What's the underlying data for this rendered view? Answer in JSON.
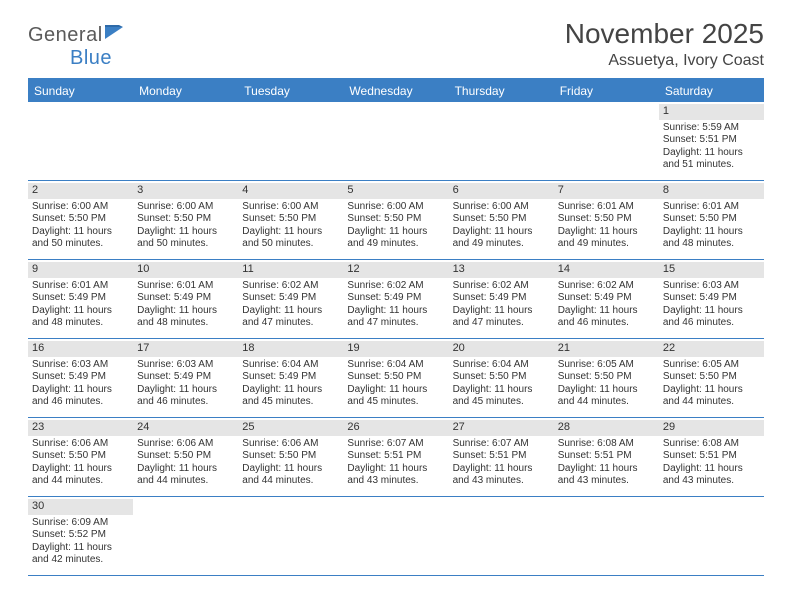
{
  "logo": {
    "text_gen": "General",
    "text_blue": "Blue"
  },
  "header": {
    "month_title": "November 2025",
    "location": "Assuetya, Ivory Coast"
  },
  "colors": {
    "accent": "#3b7fc4",
    "daynum_bg": "#e5e5e5",
    "text": "#333333",
    "bg": "#ffffff"
  },
  "day_headers": [
    "Sunday",
    "Monday",
    "Tuesday",
    "Wednesday",
    "Thursday",
    "Friday",
    "Saturday"
  ],
  "weeks": [
    [
      {
        "empty": true
      },
      {
        "empty": true
      },
      {
        "empty": true
      },
      {
        "empty": true
      },
      {
        "empty": true
      },
      {
        "empty": true
      },
      {
        "day": "1",
        "sunrise": "Sunrise: 5:59 AM",
        "sunset": "Sunset: 5:51 PM",
        "daylight1": "Daylight: 11 hours",
        "daylight2": "and 51 minutes."
      }
    ],
    [
      {
        "day": "2",
        "sunrise": "Sunrise: 6:00 AM",
        "sunset": "Sunset: 5:50 PM",
        "daylight1": "Daylight: 11 hours",
        "daylight2": "and 50 minutes."
      },
      {
        "day": "3",
        "sunrise": "Sunrise: 6:00 AM",
        "sunset": "Sunset: 5:50 PM",
        "daylight1": "Daylight: 11 hours",
        "daylight2": "and 50 minutes."
      },
      {
        "day": "4",
        "sunrise": "Sunrise: 6:00 AM",
        "sunset": "Sunset: 5:50 PM",
        "daylight1": "Daylight: 11 hours",
        "daylight2": "and 50 minutes."
      },
      {
        "day": "5",
        "sunrise": "Sunrise: 6:00 AM",
        "sunset": "Sunset: 5:50 PM",
        "daylight1": "Daylight: 11 hours",
        "daylight2": "and 49 minutes."
      },
      {
        "day": "6",
        "sunrise": "Sunrise: 6:00 AM",
        "sunset": "Sunset: 5:50 PM",
        "daylight1": "Daylight: 11 hours",
        "daylight2": "and 49 minutes."
      },
      {
        "day": "7",
        "sunrise": "Sunrise: 6:01 AM",
        "sunset": "Sunset: 5:50 PM",
        "daylight1": "Daylight: 11 hours",
        "daylight2": "and 49 minutes."
      },
      {
        "day": "8",
        "sunrise": "Sunrise: 6:01 AM",
        "sunset": "Sunset: 5:50 PM",
        "daylight1": "Daylight: 11 hours",
        "daylight2": "and 48 minutes."
      }
    ],
    [
      {
        "day": "9",
        "sunrise": "Sunrise: 6:01 AM",
        "sunset": "Sunset: 5:49 PM",
        "daylight1": "Daylight: 11 hours",
        "daylight2": "and 48 minutes."
      },
      {
        "day": "10",
        "sunrise": "Sunrise: 6:01 AM",
        "sunset": "Sunset: 5:49 PM",
        "daylight1": "Daylight: 11 hours",
        "daylight2": "and 48 minutes."
      },
      {
        "day": "11",
        "sunrise": "Sunrise: 6:02 AM",
        "sunset": "Sunset: 5:49 PM",
        "daylight1": "Daylight: 11 hours",
        "daylight2": "and 47 minutes."
      },
      {
        "day": "12",
        "sunrise": "Sunrise: 6:02 AM",
        "sunset": "Sunset: 5:49 PM",
        "daylight1": "Daylight: 11 hours",
        "daylight2": "and 47 minutes."
      },
      {
        "day": "13",
        "sunrise": "Sunrise: 6:02 AM",
        "sunset": "Sunset: 5:49 PM",
        "daylight1": "Daylight: 11 hours",
        "daylight2": "and 47 minutes."
      },
      {
        "day": "14",
        "sunrise": "Sunrise: 6:02 AM",
        "sunset": "Sunset: 5:49 PM",
        "daylight1": "Daylight: 11 hours",
        "daylight2": "and 46 minutes."
      },
      {
        "day": "15",
        "sunrise": "Sunrise: 6:03 AM",
        "sunset": "Sunset: 5:49 PM",
        "daylight1": "Daylight: 11 hours",
        "daylight2": "and 46 minutes."
      }
    ],
    [
      {
        "day": "16",
        "sunrise": "Sunrise: 6:03 AM",
        "sunset": "Sunset: 5:49 PM",
        "daylight1": "Daylight: 11 hours",
        "daylight2": "and 46 minutes."
      },
      {
        "day": "17",
        "sunrise": "Sunrise: 6:03 AM",
        "sunset": "Sunset: 5:49 PM",
        "daylight1": "Daylight: 11 hours",
        "daylight2": "and 46 minutes."
      },
      {
        "day": "18",
        "sunrise": "Sunrise: 6:04 AM",
        "sunset": "Sunset: 5:49 PM",
        "daylight1": "Daylight: 11 hours",
        "daylight2": "and 45 minutes."
      },
      {
        "day": "19",
        "sunrise": "Sunrise: 6:04 AM",
        "sunset": "Sunset: 5:50 PM",
        "daylight1": "Daylight: 11 hours",
        "daylight2": "and 45 minutes."
      },
      {
        "day": "20",
        "sunrise": "Sunrise: 6:04 AM",
        "sunset": "Sunset: 5:50 PM",
        "daylight1": "Daylight: 11 hours",
        "daylight2": "and 45 minutes."
      },
      {
        "day": "21",
        "sunrise": "Sunrise: 6:05 AM",
        "sunset": "Sunset: 5:50 PM",
        "daylight1": "Daylight: 11 hours",
        "daylight2": "and 44 minutes."
      },
      {
        "day": "22",
        "sunrise": "Sunrise: 6:05 AM",
        "sunset": "Sunset: 5:50 PM",
        "daylight1": "Daylight: 11 hours",
        "daylight2": "and 44 minutes."
      }
    ],
    [
      {
        "day": "23",
        "sunrise": "Sunrise: 6:06 AM",
        "sunset": "Sunset: 5:50 PM",
        "daylight1": "Daylight: 11 hours",
        "daylight2": "and 44 minutes."
      },
      {
        "day": "24",
        "sunrise": "Sunrise: 6:06 AM",
        "sunset": "Sunset: 5:50 PM",
        "daylight1": "Daylight: 11 hours",
        "daylight2": "and 44 minutes."
      },
      {
        "day": "25",
        "sunrise": "Sunrise: 6:06 AM",
        "sunset": "Sunset: 5:50 PM",
        "daylight1": "Daylight: 11 hours",
        "daylight2": "and 44 minutes."
      },
      {
        "day": "26",
        "sunrise": "Sunrise: 6:07 AM",
        "sunset": "Sunset: 5:51 PM",
        "daylight1": "Daylight: 11 hours",
        "daylight2": "and 43 minutes."
      },
      {
        "day": "27",
        "sunrise": "Sunrise: 6:07 AM",
        "sunset": "Sunset: 5:51 PM",
        "daylight1": "Daylight: 11 hours",
        "daylight2": "and 43 minutes."
      },
      {
        "day": "28",
        "sunrise": "Sunrise: 6:08 AM",
        "sunset": "Sunset: 5:51 PM",
        "daylight1": "Daylight: 11 hours",
        "daylight2": "and 43 minutes."
      },
      {
        "day": "29",
        "sunrise": "Sunrise: 6:08 AM",
        "sunset": "Sunset: 5:51 PM",
        "daylight1": "Daylight: 11 hours",
        "daylight2": "and 43 minutes."
      }
    ],
    [
      {
        "day": "30",
        "sunrise": "Sunrise: 6:09 AM",
        "sunset": "Sunset: 5:52 PM",
        "daylight1": "Daylight: 11 hours",
        "daylight2": "and 42 minutes."
      },
      {
        "empty": true
      },
      {
        "empty": true
      },
      {
        "empty": true
      },
      {
        "empty": true
      },
      {
        "empty": true
      },
      {
        "empty": true
      }
    ]
  ]
}
